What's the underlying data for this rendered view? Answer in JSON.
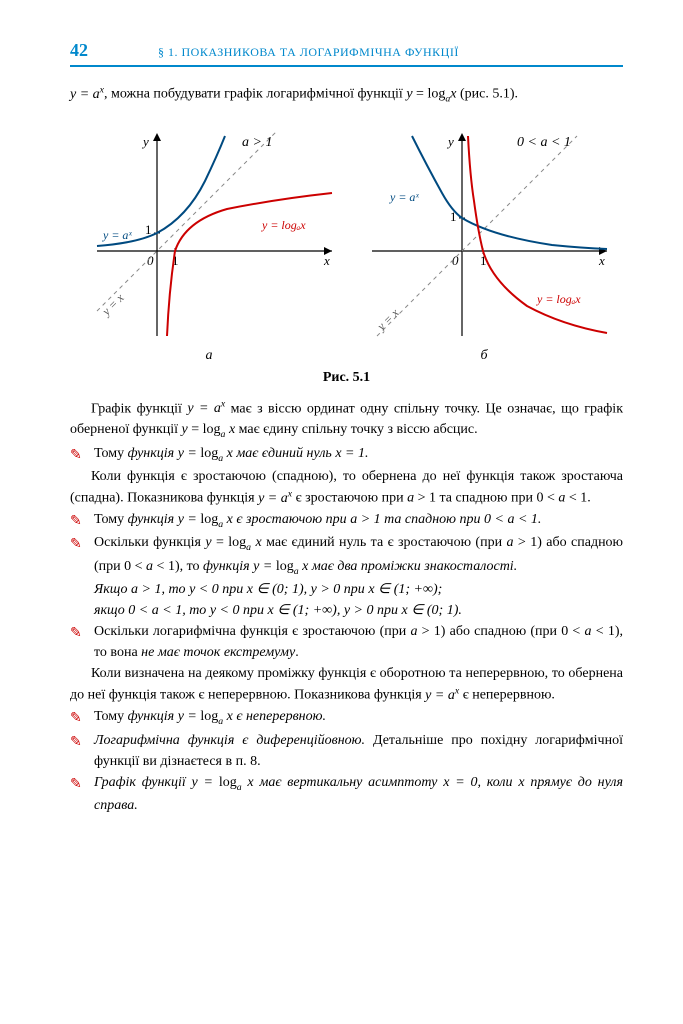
{
  "header": {
    "page_number": "42",
    "section": "§ 1. ПОКАЗНИКОВА ТА ЛОГАРИФМІЧНА ФУНКЦІЇ"
  },
  "intro_html": "<span class='math'>y = a<sup>x</sup></span>, можна побудувати графік логарифмічної функції <span class='math'>y</span> = log<sub><span class='math'>a</span></sub><span class='math'>x</span> (рис. 5.1).",
  "figure_caption": "Рис. 5.1",
  "sublabels": {
    "left": "а",
    "right": "б"
  },
  "chart_left": {
    "condition": "a > 1",
    "exp_label": "y = aˣ",
    "log_label": "y = logₐx",
    "diag_label": "y = x",
    "colors": {
      "axis": "#000000",
      "tick": "#000000",
      "exp": "#004a80",
      "log": "#cc0000",
      "diag": "#888888",
      "label_exp": "#004a80",
      "label_log": "#cc0000",
      "label_diag": "#555555",
      "cond": "#000000"
    }
  },
  "chart_right": {
    "condition": "0 < a < 1",
    "exp_label": "y = aˣ",
    "log_label": "y = logₐx",
    "diag_label": "y = x",
    "colors": {
      "axis": "#000000",
      "exp": "#004a80",
      "log": "#cc0000",
      "diag": "#888888",
      "label_exp": "#004a80",
      "label_log": "#cc0000",
      "label_diag": "#555555",
      "cond": "#000000"
    }
  },
  "paragraphs": [
    {
      "type": "p",
      "html": "Графік функції <span class='math'>y = a<sup>x</sup></span> має з віссю ординат одну спільну точку. Це означає, що графік оберненої функції <span class='math'>y</span> = log<sub><span class='math'>a</span></sub> <span class='math'>x</span> має єдину спільну точку з віссю абсцис."
    },
    {
      "type": "bullet",
      "html": "Тому <span class='ital'>функція <span class='math'>y</span> = </span>log<sub><span class='math ital'>a</span></sub> <span class='ital math'>x</span> <span class='ital'>має єдиний нуль <span class='math'>x</span> = 1.</span>"
    },
    {
      "type": "p",
      "html": "Коли функція є зростаючою (спадною), то обернена до неї функція також зростаюча (спадна). Показникова функція <span class='math'>y = a<sup>x</sup></span> є зростаючою при <span class='math'>a</span> &gt; 1 та спадною при 0 &lt; <span class='math'>a</span> &lt; 1."
    },
    {
      "type": "bullet",
      "html": "Тому <span class='ital'>функція <span class='math'>y</span> = </span>log<sub><span class='math ital'>a</span></sub> <span class='ital math'>x</span> <span class='ital'>є зростаючою при <span class='math'>a</span> &gt; 1 та спадною при 0 &lt; <span class='math'>a</span> &lt; 1.</span>"
    },
    {
      "type": "bullet",
      "html": "Оскільки функція <span class='math'>y</span> = log<sub><span class='math'>a</span></sub> <span class='math'>x</span> має єдиний нуль та є зростаючою (при <span class='math'>a</span> &gt; 1) або спадною (при 0 &lt; <span class='math'>a</span> &lt; 1), то <span class='ital'>функція <span class='math'>y</span> = </span>log<sub><span class='math ital'>a</span></sub> <span class='ital math'>x</span> <span class='ital'>має два проміжки знакосталості.</span>"
    },
    {
      "type": "p-ital",
      "html": "Якщо <span class='math'>a</span> &gt; 1, то <span class='math'>y</span> &lt; 0 при <span class='math'>x</span> ∈ (0; 1), <span class='math'>y</span> &gt; 0 при <span class='math'>x</span> ∈ (1; +∞);<br>якщо 0 &lt; <span class='math'>a</span> &lt; 1, то <span class='math'>y</span> &lt; 0 при <span class='math'>x</span> ∈ (1; +∞), <span class='math'>y</span> &gt; 0 при <span class='math'>x</span> ∈ (0; 1)."
    },
    {
      "type": "bullet",
      "html": "Оскільки логарифмічна функція є зростаючою (при <span class='math'>a</span> &gt; 1) або спадною (при 0 &lt; <span class='math'>a</span> &lt; 1), то вона <span class='ital'>не має точок екстремуму</span>."
    },
    {
      "type": "p",
      "html": "Коли визначена на деякому проміжку функція є оборотною та неперервною, то обернена до неї функція також є неперервною. Показникова функція <span class='math'>y = a<sup>x</sup></span> є неперервною."
    },
    {
      "type": "bullet",
      "html": "Тому <span class='ital'>функція <span class='math'>y</span> = </span>log<sub><span class='math ital'>a</span></sub> <span class='ital math'>x</span> <span class='ital'>є неперервною.</span>"
    },
    {
      "type": "bullet",
      "html": "<span class='ital'>Логарифмічна функція є диференційовною.</span> Детальніше про похідну логарифмічної функції ви дізнаєтеся в п. 8."
    },
    {
      "type": "bullet",
      "html": "<span class='ital'>Графік функції <span class='math'>y</span> = </span>log<sub><span class='math ital'>a</span></sub> <span class='ital math'>x</span> <span class='ital'>має вертикальну асимптоту <span class='math'>x</span> = 0, коли <span class='math'>x</span> прямує до нуля справа.</span>"
    }
  ]
}
